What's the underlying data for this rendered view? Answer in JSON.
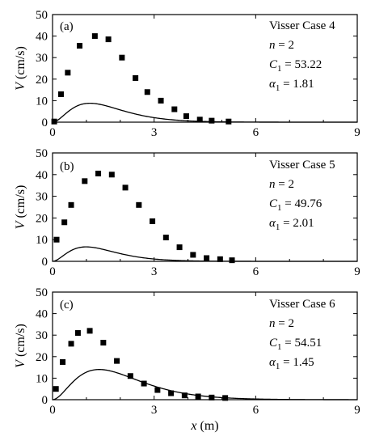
{
  "chart_data": [
    {
      "type": "scatter",
      "panel_label": "(a)",
      "case": "Visser Case 4",
      "n_text": "n = 2",
      "c1_text": "C1 = 53.22",
      "a1_text": "α1 = 1.81",
      "n_var": "n",
      "n_val": "2",
      "c_var": "C",
      "c_sub": "1",
      "c_val": "53.22",
      "a_var": "α",
      "a_sub": "1",
      "a_val": "1.81",
      "ylabel": "V (cm/s)",
      "xlim": [
        0,
        9
      ],
      "ylim": [
        0,
        50
      ],
      "xticks": [
        0,
        3,
        6,
        9
      ],
      "yticks": [
        0,
        10,
        20,
        30,
        40,
        50
      ],
      "curve_model": {
        "C": 53.22,
        "alpha": 1.81,
        "n": 2
      },
      "series": [
        {
          "kind": "measured",
          "marker": "square",
          "x": [
            0.05,
            0.25,
            0.45,
            0.8,
            1.25,
            1.65,
            2.05,
            2.45,
            2.8,
            3.2,
            3.6,
            3.95,
            4.35,
            4.7,
            5.2
          ],
          "y": [
            0.3,
            13,
            23,
            35.5,
            40,
            38.5,
            30,
            20.5,
            14,
            10,
            6,
            2.8,
            1.2,
            0.7,
            0.3
          ]
        },
        {
          "kind": "fit",
          "marker": "line"
        }
      ]
    },
    {
      "type": "scatter",
      "panel_label": "(b)",
      "case": "Visser Case 5",
      "n_text": "n = 2",
      "c1_text": "C1 = 49.76",
      "a1_text": "α1 = 2.01",
      "n_var": "n",
      "n_val": "2",
      "c_var": "C",
      "c_sub": "1",
      "c_val": "49.76",
      "a_var": "α",
      "a_sub": "1",
      "a_val": "2.01",
      "ylabel": "V (cm/s)",
      "xlim": [
        0,
        9
      ],
      "ylim": [
        0,
        50
      ],
      "xticks": [
        0,
        3,
        6,
        9
      ],
      "yticks": [
        0,
        10,
        20,
        30,
        40,
        50
      ],
      "curve_model": {
        "C": 49.76,
        "alpha": 2.01,
        "n": 2
      },
      "series": [
        {
          "kind": "measured",
          "marker": "square",
          "x": [
            0.12,
            0.35,
            0.55,
            0.95,
            1.35,
            1.75,
            2.15,
            2.55,
            2.95,
            3.35,
            3.75,
            4.15,
            4.55,
            4.95,
            5.3
          ],
          "y": [
            10,
            18,
            26,
            37,
            40.5,
            40,
            34,
            26,
            18.5,
            11,
            6.5,
            3,
            1.5,
            1,
            0.5
          ]
        },
        {
          "kind": "fit",
          "marker": "line"
        }
      ]
    },
    {
      "type": "scatter",
      "panel_label": "(c)",
      "case": "Visser Case 6",
      "n_text": "n = 2",
      "c1_text": "C1 = 54.51",
      "a1_text": "α1 = 1.45",
      "n_var": "n",
      "n_val": "2",
      "c_var": "C",
      "c_sub": "1",
      "c_val": "54.51",
      "a_var": "α",
      "a_sub": "1",
      "a_val": "1.45",
      "ylabel": "V (cm/s)",
      "xlabel": "x (m)",
      "xlim": [
        0,
        9
      ],
      "ylim": [
        0,
        50
      ],
      "xticks": [
        0,
        3,
        6,
        9
      ],
      "yticks": [
        0,
        10,
        20,
        30,
        40,
        50
      ],
      "curve_model": {
        "C": 54.51,
        "alpha": 1.45,
        "n": 2
      },
      "series": [
        {
          "kind": "measured",
          "marker": "square",
          "x": [
            0.1,
            0.3,
            0.55,
            0.75,
            1.1,
            1.5,
            1.9,
            2.3,
            2.7,
            3.1,
            3.5,
            3.9,
            4.3,
            4.7,
            5.1
          ],
          "y": [
            5,
            17.5,
            26,
            31,
            32,
            26.5,
            18,
            11,
            7.5,
            4.5,
            3,
            2,
            1.5,
            1,
            0.8
          ]
        },
        {
          "kind": "fit",
          "marker": "line"
        }
      ]
    }
  ]
}
